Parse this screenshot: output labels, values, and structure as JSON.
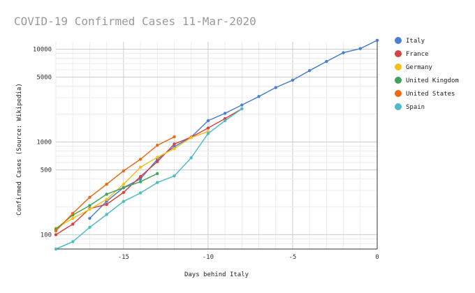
{
  "chart_data": {
    "type": "line",
    "title": "COVID-19 Confirmed Cases 11-Mar-2020",
    "xlabel": "Days behind Italy",
    "ylabel": "Confirmed Cases (Source: Wikipedia)",
    "y_scale": "log",
    "xlim": [
      -19,
      0
    ],
    "ylim": [
      70,
      12000
    ],
    "x_ticks": [
      -15,
      -10,
      -5,
      0
    ],
    "x_tick_labels": [
      "-15",
      "-10",
      "-5",
      "0"
    ],
    "y_ticks": [
      100,
      500,
      1000,
      5000,
      10000
    ],
    "y_tick_labels": [
      "100",
      "500",
      "1000",
      "5000",
      "10000"
    ],
    "grid": true,
    "legend_position": "right",
    "series": [
      {
        "name": "Italy",
        "color": "#4a7fd4",
        "x": [
          -17,
          -16,
          -15,
          -14,
          -13,
          -12,
          -11,
          -10,
          -9,
          -8,
          -7,
          -6,
          -5,
          -4,
          -3,
          -2,
          -1,
          0
        ],
        "y": [
          150,
          229,
          322,
          400,
          650,
          888,
          1128,
          1694,
          2036,
          2502,
          3089,
          3858,
          4636,
          5883,
          7375,
          9172,
          10149,
          12462
        ]
      },
      {
        "name": "France",
        "color": "#d8433f",
        "x": [
          -19,
          -18,
          -17,
          -16,
          -15,
          -14,
          -13,
          -12,
          -11,
          -10,
          -9,
          -8
        ],
        "y": [
          100,
          130,
          191,
          212,
          285,
          423,
          613,
          949,
          1126,
          1412,
          1784,
          2281
        ]
      },
      {
        "name": "Germany",
        "color": "#f2c01c",
        "x": [
          -19,
          -18,
          -17,
          -16,
          -15,
          -14,
          -13,
          -12,
          -11,
          -10
        ],
        "y": [
          117,
          150,
          188,
          240,
          349,
          534,
          684,
          847,
          1112,
          1296
        ]
      },
      {
        "name": "United Kingdom",
        "color": "#3fa35b",
        "x": [
          -19,
          -18,
          -17,
          -16,
          -15,
          -14,
          -13
        ],
        "y": [
          115,
          163,
          206,
          273,
          321,
          373,
          456
        ]
      },
      {
        "name": "United States",
        "color": "#ec6b12",
        "x": [
          -19,
          -18,
          -17,
          -16,
          -15,
          -14,
          -13,
          -12
        ],
        "y": [
          110,
          170,
          253,
          350,
          487,
          650,
          922,
          1135
        ]
      },
      {
        "name": "Spain",
        "color": "#4ebcc6",
        "x": [
          -19,
          -18,
          -17,
          -16,
          -15,
          -14,
          -13,
          -12,
          -11,
          -10,
          -9,
          -8
        ],
        "y": [
          70,
          84,
          120,
          165,
          228,
          282,
          365,
          430,
          674,
          1231,
          1695,
          2277
        ]
      }
    ]
  }
}
